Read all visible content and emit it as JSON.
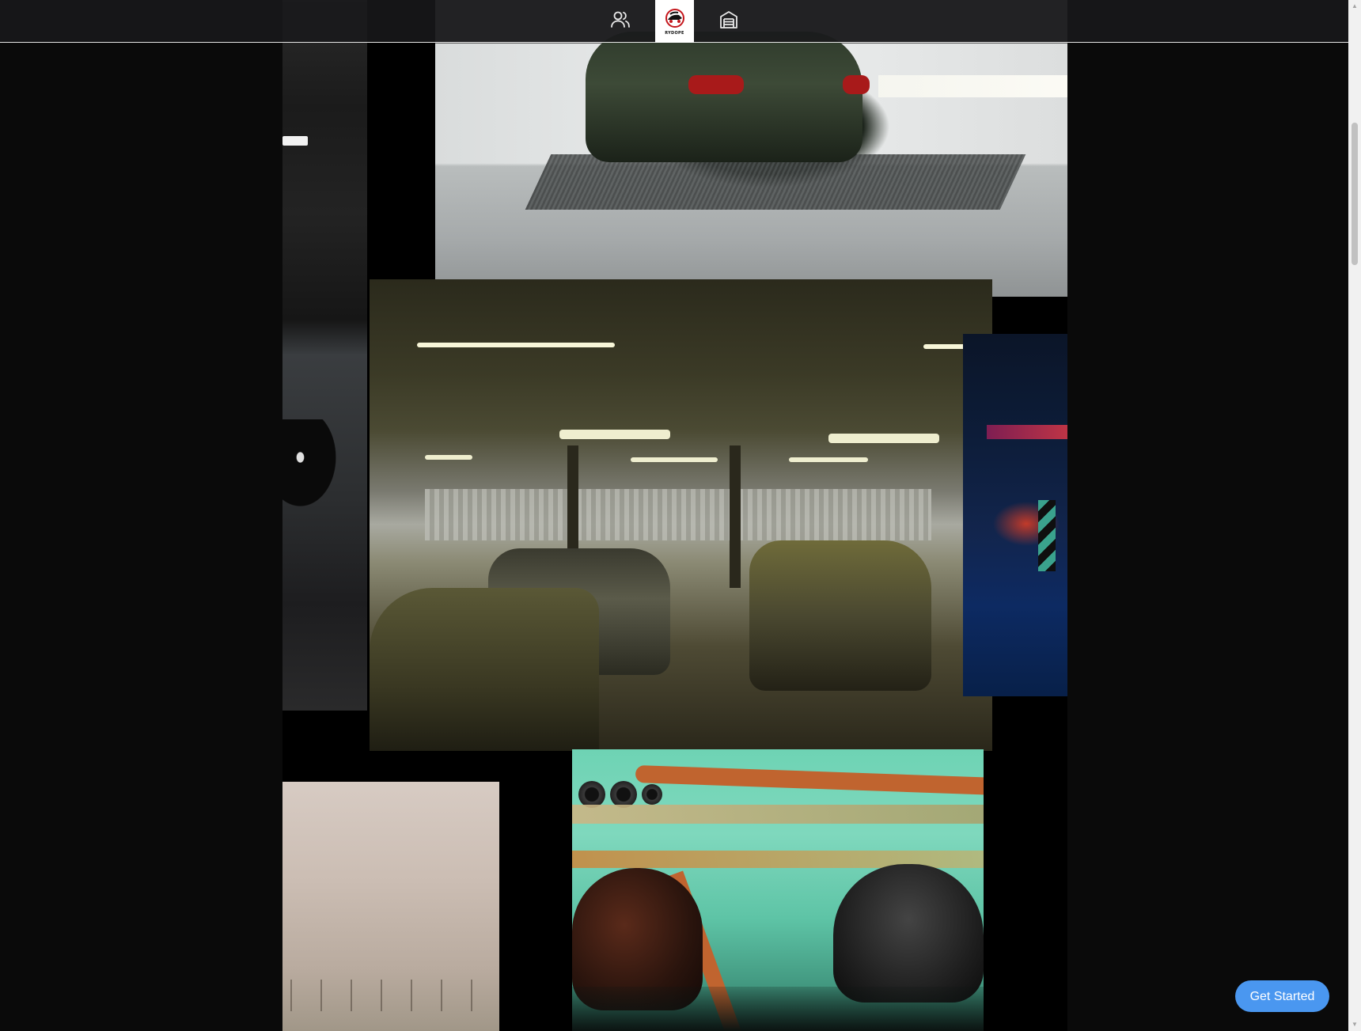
{
  "nav": {
    "left_icon": "users-icon",
    "center_logo": {
      "icon": "car-helmet-logo-icon",
      "text": "RYDOPE"
    },
    "right_icon": "garage-icon",
    "accent_color": "#ffffff",
    "background": "#19191b"
  },
  "gallery": {
    "images": [
      {
        "subject": "green-bmw-in-white-wash-bay"
      },
      {
        "subject": "dark-motorcycle-detail"
      },
      {
        "subject": "race-cars-in-pit-garage"
      },
      {
        "subject": "neon-lit-parking-garage"
      },
      {
        "subject": "foggy-field"
      },
      {
        "subject": "drivers-in-helmets-roll-cage"
      }
    ]
  },
  "cta": {
    "label": "Get Started",
    "color": "#4a97f0"
  },
  "scrollbar": {
    "thumb_color": "#c1c1c1",
    "track_color": "#f1f1f1"
  }
}
